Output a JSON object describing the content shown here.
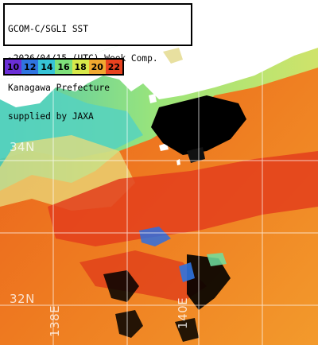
{
  "title_lines": [
    "GCOM-C/SGLI SST",
    "~2026/04/15 (UTC) Week Comp.",
    "Kanagawa Prefecture",
    "supplied by JAXA"
  ],
  "legend": {
    "items": [
      {
        "label": "10",
        "color": "#6a2fd6"
      },
      {
        "label": "12",
        "color": "#2f74e0"
      },
      {
        "label": "14",
        "color": "#36c3d6"
      },
      {
        "label": "16",
        "color": "#7ee07a"
      },
      {
        "label": "18",
        "color": "#d7e84a"
      },
      {
        "label": "20",
        "color": "#f0a830"
      },
      {
        "label": "22",
        "color": "#e8421f"
      }
    ]
  },
  "grid_labels": {
    "lat": [
      "34N",
      "32N"
    ],
    "lon": [
      "138E",
      "140E"
    ]
  },
  "colors": {
    "land": "#ffffff",
    "cloud": "#000000",
    "warm": "#e96a1a",
    "hot": "#e2401c",
    "cool": "#8fe07a",
    "cyan": "#5fd7c8"
  }
}
